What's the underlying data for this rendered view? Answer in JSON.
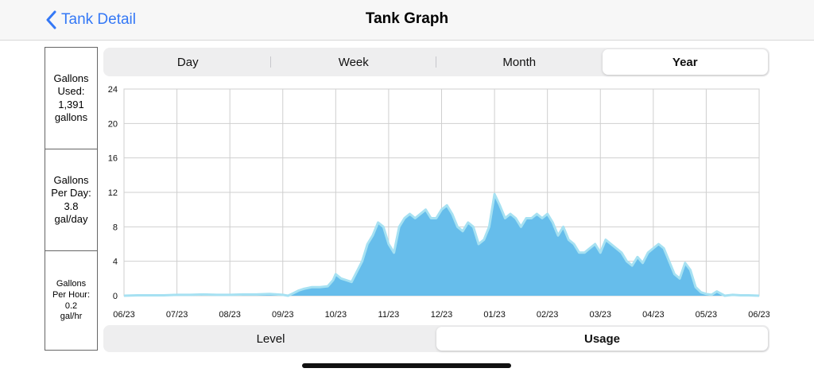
{
  "nav": {
    "back_label": "Tank Detail",
    "title": "Tank Graph"
  },
  "stats": {
    "gallons_used": [
      "Gallons",
      "Used:",
      "1,391",
      "gallons"
    ],
    "gallons_per_day": [
      "Gallons",
      "Per Day:",
      "3.8",
      "gal/day"
    ],
    "gallons_per_hour": [
      "Gallons",
      "Per Hour:",
      "0.2",
      "gal/hr"
    ]
  },
  "period_tabs": [
    {
      "label": "Day",
      "active": false
    },
    {
      "label": "Week",
      "active": false
    },
    {
      "label": "Month",
      "active": false
    },
    {
      "label": "Year",
      "active": true
    }
  ],
  "mode_tabs": [
    {
      "label": "Level",
      "active": false
    },
    {
      "label": "Usage",
      "active": true
    }
  ],
  "chart_data": {
    "type": "area",
    "title": "",
    "xlabel": "",
    "ylabel": "",
    "ylim": [
      0,
      24
    ],
    "yticks": [
      0,
      4,
      8,
      12,
      16,
      20,
      24
    ],
    "xticks": [
      "06/23",
      "07/23",
      "08/23",
      "09/23",
      "10/23",
      "11/23",
      "12/23",
      "01/23",
      "02/23",
      "03/23",
      "04/23",
      "05/23",
      "06/23"
    ],
    "grid": true,
    "fill_color": "#66bdeb",
    "outline_color": "#a6e1f2",
    "series": [
      {
        "x": [
          0,
          0.25,
          0.5,
          0.75,
          1,
          1.25,
          1.5,
          1.75,
          2,
          2.25,
          2.5,
          2.75,
          3,
          3.1,
          3.2,
          3.3,
          3.4,
          3.55,
          3.7,
          3.85,
          3.95,
          4,
          4.1,
          4.2,
          4.3,
          4.5,
          4.6,
          4.7,
          4.8,
          4.9,
          5,
          5.1,
          5.2,
          5.3,
          5.4,
          5.5,
          5.6,
          5.7,
          5.8,
          5.9,
          6,
          6.1,
          6.2,
          6.3,
          6.4,
          6.5,
          6.6,
          6.7,
          6.8,
          6.9,
          7,
          7.1,
          7.2,
          7.3,
          7.4,
          7.5,
          7.6,
          7.7,
          7.8,
          7.9,
          8,
          8.1,
          8.2,
          8.3,
          8.4,
          8.5,
          8.6,
          8.7,
          8.8,
          8.9,
          9,
          9.1,
          9.2,
          9.3,
          9.4,
          9.5,
          9.6,
          9.7,
          9.8,
          9.9,
          10,
          10.1,
          10.2,
          10.3,
          10.4,
          10.5,
          10.6,
          10.7,
          10.8,
          10.9,
          11,
          11.1,
          11.2,
          11.35,
          11.5,
          11.65,
          11.8,
          12
        ],
        "values": [
          0,
          0.05,
          0.05,
          0.05,
          0.1,
          0.1,
          0.15,
          0.1,
          0.1,
          0.15,
          0.15,
          0.2,
          0.1,
          0,
          0.3,
          0.6,
          0.8,
          1,
          1,
          1.1,
          1.8,
          2.5,
          2,
          1.8,
          1.6,
          4,
          6,
          7,
          8.5,
          8,
          6,
          5,
          8,
          9,
          9.5,
          9,
          9.5,
          10,
          9,
          9,
          10,
          10.5,
          9.5,
          8,
          7.5,
          8.5,
          8,
          6,
          6.5,
          8,
          11.8,
          10.5,
          9,
          9.5,
          9,
          8,
          9,
          9,
          9.5,
          9,
          9.5,
          8.5,
          7,
          8,
          6.5,
          6,
          5,
          5,
          5.5,
          6,
          5,
          6.5,
          6,
          5.5,
          5,
          4,
          3.5,
          4.5,
          3.8,
          5,
          5.5,
          6,
          5.5,
          4,
          2.5,
          2,
          3.8,
          3,
          1,
          0.4,
          0.2,
          0.1,
          0.5,
          0,
          0.1,
          0.05,
          0.05,
          0
        ]
      }
    ]
  }
}
